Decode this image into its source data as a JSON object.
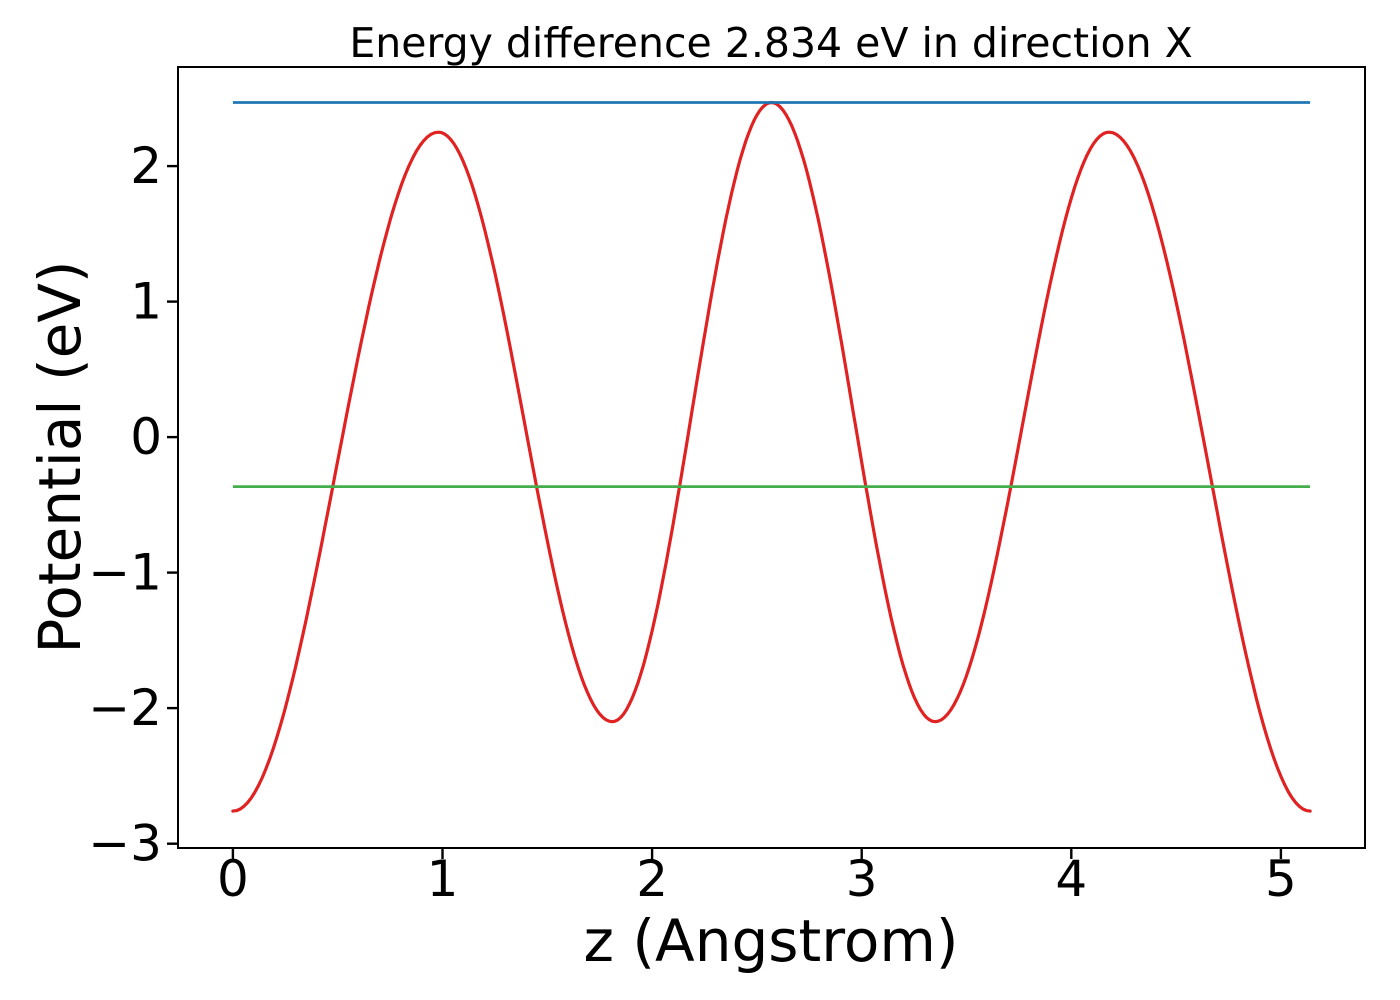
{
  "figure": {
    "background": "#ffffff",
    "spine_color": "#000000",
    "tick_color": "#000000",
    "text_color": "#000000"
  },
  "chart_data": {
    "type": "line",
    "title": "Energy difference 2.834 eV in direction X",
    "xlabel": "z (Angstrom)",
    "ylabel": "Potential (eV)",
    "xlim": [
      -0.262,
      5.401
    ],
    "ylim": [
      -3.032,
      2.731
    ],
    "x_ticks": [
      0,
      1,
      2,
      3,
      4,
      5
    ],
    "y_ticks": [
      -3,
      -2,
      -1,
      0,
      1,
      2
    ],
    "grid": false,
    "legend": false,
    "energy_difference_eV": 2.834,
    "series": [
      {
        "name": "potential-curve",
        "type": "curve",
        "color": "#e02222",
        "line_width": 3.2,
        "x_range": [
          0,
          5.139
        ],
        "extrema": [
          [
            0.0,
            -2.76
          ],
          [
            0.98,
            2.25
          ],
          [
            1.81,
            -2.1
          ],
          [
            2.569,
            2.469
          ],
          [
            3.35,
            -2.1
          ],
          [
            4.18,
            2.25
          ],
          [
            5.139,
            -2.76
          ]
        ]
      },
      {
        "name": "max-potential-line",
        "type": "hline",
        "color": "#1f77b4",
        "line_width": 2.8,
        "y": 2.469,
        "x_range": [
          0,
          5.139
        ]
      },
      {
        "name": "average-potential-line",
        "type": "hline",
        "color": "#44ad4c",
        "line_width": 2.8,
        "y": -0.365,
        "x_range": [
          0,
          5.139
        ]
      }
    ]
  }
}
